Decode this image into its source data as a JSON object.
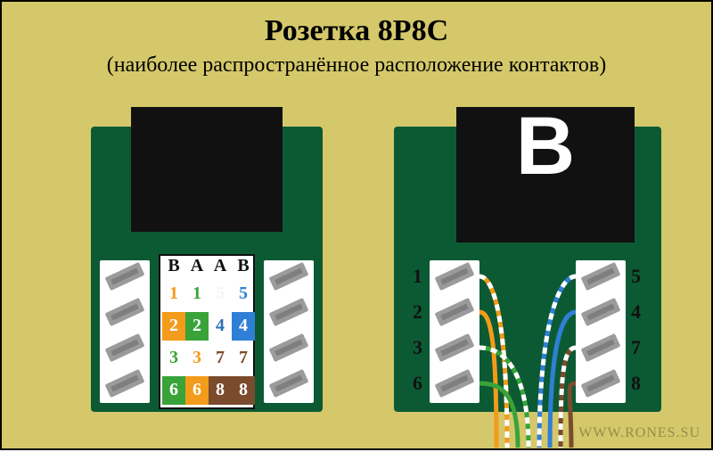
{
  "title": "Розетка 8P8C",
  "subtitle": "(наиболее распространённое расположение контактов)",
  "watermark": "WWW.RONES.SU",
  "bg_color": "#d4c86a",
  "module_color": "#0c5a34",
  "plug_color": "#111111",
  "terminal_bg": "#ffffff",
  "terminal_color": "#9b9b9b",
  "title_fontsize": 34,
  "sub_fontsize": 24,
  "label_fontsize": 20,
  "right_plug_letter": "B",
  "left_label_header": [
    "B",
    "A",
    "A",
    "B"
  ],
  "left_label_rows": [
    {
      "nums": [
        "1",
        "1",
        "5",
        "5"
      ],
      "bg": null,
      "colors": [
        "#f39b1a",
        "#39a33a",
        "#f5f5f5",
        "#2f7fd6"
      ]
    },
    {
      "nums": [
        "2",
        "2",
        "4",
        "4"
      ],
      "bg": "#f39b1a",
      "colors": [
        "#ffffff",
        "#ffffff",
        "#2d6fb8",
        "#ffffff"
      ],
      "bg_segments": [
        "#f39b1a",
        "#39a33a",
        "#ffffff",
        "#2f7fd6"
      ]
    },
    {
      "nums": [
        "3",
        "3",
        "7",
        "7"
      ],
      "bg": null,
      "colors": [
        "#39a33a",
        "#f39b1a",
        "#7a4b2d",
        "#7a4b2d"
      ]
    },
    {
      "nums": [
        "6",
        "6",
        "8",
        "8"
      ],
      "bg": "#39a33a",
      "colors": [
        "#ffffff",
        "#ffffff",
        "#ffffff",
        "#ffffff"
      ],
      "bg_segments": [
        "#39a33a",
        "#f39b1a",
        "#7a4b2d",
        "#7a4b2d"
      ]
    }
  ],
  "right_pins_left": [
    "1",
    "2",
    "3",
    "6"
  ],
  "right_pins_right": [
    "5",
    "4",
    "7",
    "8"
  ],
  "wire_colors": {
    "pin1": "#f39b1a",
    "pin1_stripe": "#ffffff",
    "pin2": "#f39b1a",
    "pin3": "#39a33a",
    "pin3_stripe": "#ffffff",
    "pin6": "#39a33a",
    "pin5": "#2f7fd6",
    "pin5_stripe": "#ffffff",
    "pin4": "#2f7fd6",
    "pin7": "#7a4b2d",
    "pin7_stripe": "#ffffff",
    "pin8": "#7a4b2d"
  }
}
